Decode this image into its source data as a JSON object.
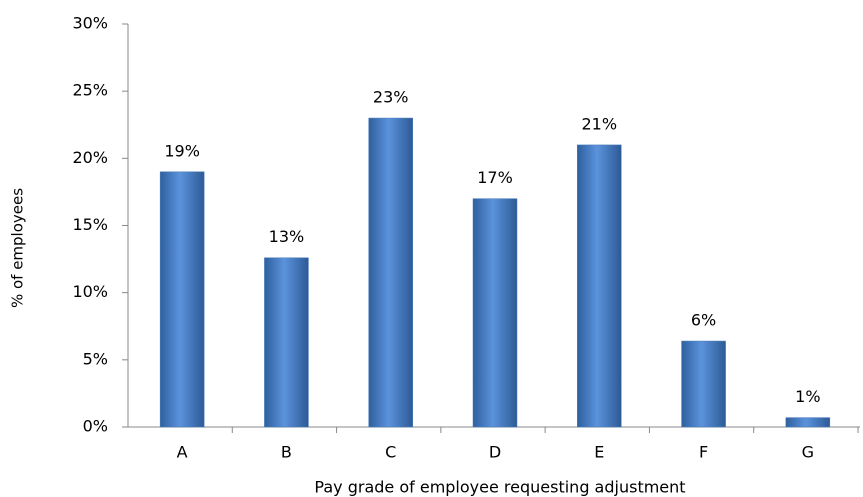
{
  "chart_data": {
    "type": "bar",
    "x_label": "Pay grade of employee requesting adjustment",
    "y_label": "% of employees",
    "categories": [
      "A",
      "B",
      "C",
      "D",
      "E",
      "F",
      "G"
    ],
    "values": [
      19,
      12.6,
      23,
      17,
      21,
      6.4,
      0.7
    ],
    "value_labels": [
      "19%",
      "13%",
      "23%",
      "17%",
      "21%",
      "6%",
      "1%"
    ],
    "color": "#4a7ebb",
    "ylim": [
      0,
      30
    ],
    "yticks": [
      {
        "value": 0,
        "label": "0%"
      },
      {
        "value": 5,
        "label": "5%"
      },
      {
        "value": 10,
        "label": "10%"
      },
      {
        "value": 15,
        "label": "15%"
      },
      {
        "value": 20,
        "label": "20%"
      },
      {
        "value": 25,
        "label": "25%"
      },
      {
        "value": 30,
        "label": "30%"
      }
    ],
    "grid": false
  }
}
